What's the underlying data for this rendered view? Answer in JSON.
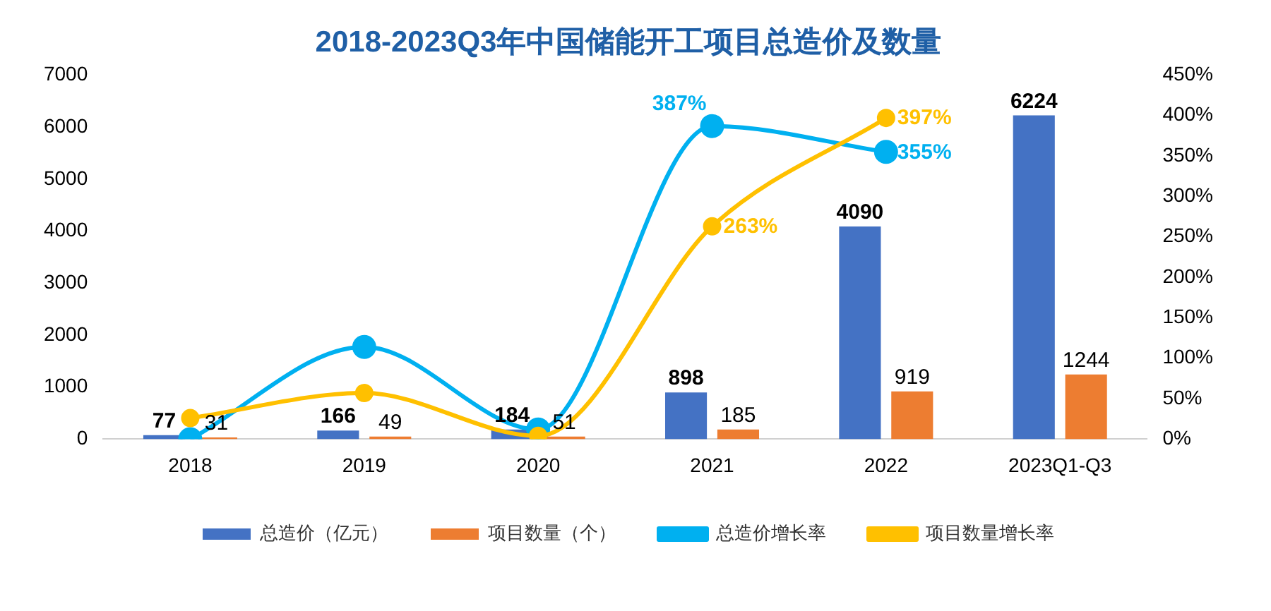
{
  "chart_data": {
    "type": "bar",
    "title": "2018-2023Q3年中国储能开工项目总造价及数量",
    "categories": [
      "2018",
      "2019",
      "2020",
      "2021",
      "2022",
      "2023Q1-Q3"
    ],
    "series": [
      {
        "name": "总造价（亿元）",
        "color": "#4472c4",
        "values": [
          77,
          166,
          184,
          898,
          4090,
          6224
        ],
        "value_labels": [
          "77",
          "166",
          "184",
          "898",
          "4090",
          "6224"
        ]
      },
      {
        "name": "项目数量（个）",
        "color": "#ed7d31",
        "values": [
          31,
          49,
          51,
          185,
          919,
          1244
        ],
        "value_labels": [
          "31",
          "49",
          "51",
          "185",
          "919",
          "1244"
        ]
      },
      {
        "name": "总造价增长率",
        "type": "line",
        "axis": "y2",
        "color": "#00b0f0",
        "values": [
          0,
          114,
          12,
          387,
          355,
          null
        ],
        "value_labels": [
          null,
          null,
          null,
          "387%",
          "355%",
          null
        ]
      },
      {
        "name": "项目数量增长率",
        "type": "line",
        "axis": "y2",
        "color": "#ffc000",
        "values": [
          26,
          57,
          4,
          263,
          397,
          null
        ],
        "value_labels": [
          null,
          null,
          null,
          "263%",
          "397%",
          null
        ]
      }
    ],
    "ylim": [
      0,
      7000
    ],
    "yticks": [
      0,
      1000,
      2000,
      3000,
      4000,
      5000,
      6000,
      7000
    ],
    "y2lim": [
      0,
      450
    ],
    "y2ticks": [
      {
        "value": 0,
        "label": "0%"
      },
      {
        "value": 50,
        "label": "50%"
      },
      {
        "value": 100,
        "label": "100%"
      },
      {
        "value": 150,
        "label": "150%"
      },
      {
        "value": 200,
        "label": "200%"
      },
      {
        "value": 250,
        "label": "250%"
      },
      {
        "value": 300,
        "label": "300%"
      },
      {
        "value": 350,
        "label": "350%"
      },
      {
        "value": 400,
        "label": "400%"
      },
      {
        "value": 450,
        "label": "450%"
      }
    ],
    "legend": "bottom",
    "marker": "circle",
    "grid": false
  }
}
